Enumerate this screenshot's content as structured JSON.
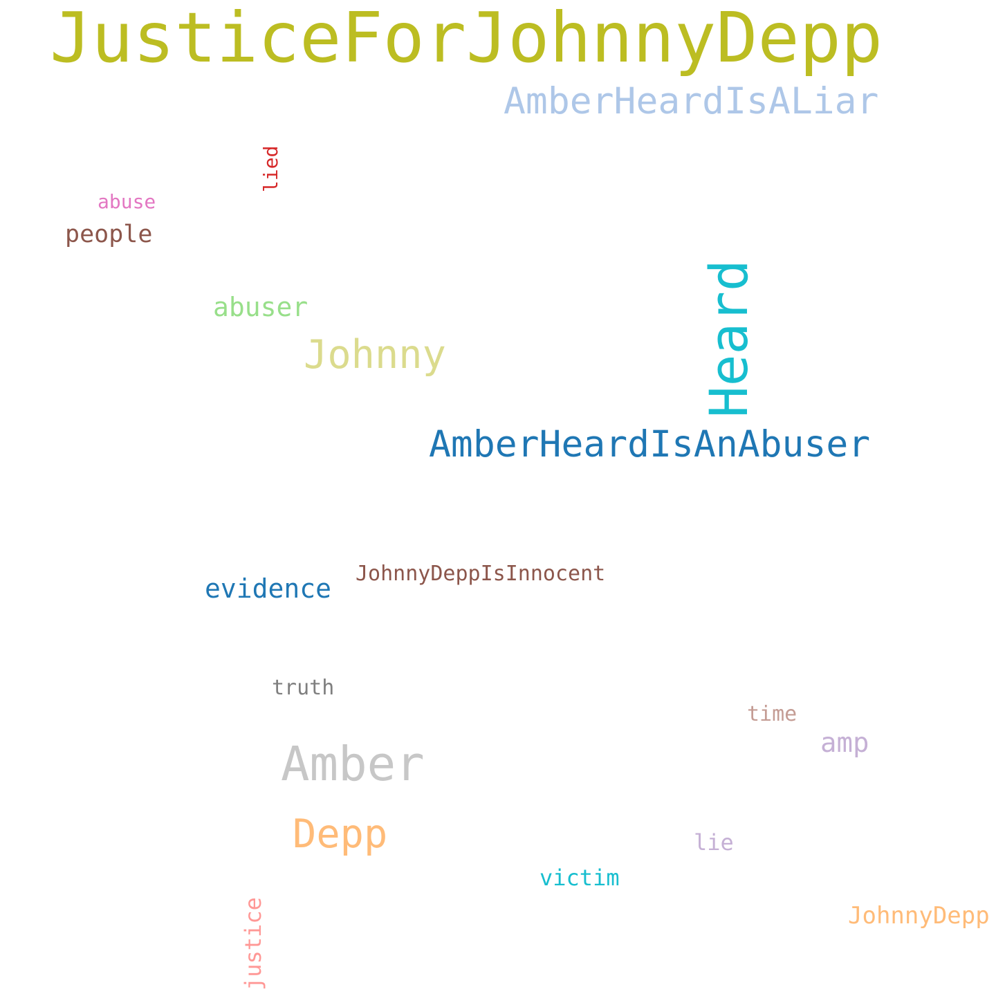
{
  "words": [
    {
      "text": "JusticeForJohnnyDepp",
      "color": "#bcbd22",
      "orientation": "horizontal"
    },
    {
      "text": "AmberHeardIsALiar",
      "color": "#aec7e8",
      "orientation": "horizontal"
    },
    {
      "text": "lied",
      "color": "#d62728",
      "orientation": "vertical"
    },
    {
      "text": "abuse",
      "color": "#e377c2",
      "orientation": "horizontal"
    },
    {
      "text": "people",
      "color": "#8c564b",
      "orientation": "horizontal"
    },
    {
      "text": "Heard",
      "color": "#17becf",
      "orientation": "vertical"
    },
    {
      "text": "abuser",
      "color": "#98df8a",
      "orientation": "horizontal"
    },
    {
      "text": "Johnny",
      "color": "#dbdb8d",
      "orientation": "horizontal"
    },
    {
      "text": "AmberHeardIsAnAbuser",
      "color": "#1f77b4",
      "orientation": "horizontal"
    },
    {
      "text": "evidence",
      "color": "#1f77b4",
      "orientation": "horizontal"
    },
    {
      "text": "JohnnyDeppIsInnocent",
      "color": "#8c564b",
      "orientation": "horizontal"
    },
    {
      "text": "truth",
      "color": "#7f7f7f",
      "orientation": "horizontal"
    },
    {
      "text": "time",
      "color": "#c49c94",
      "orientation": "horizontal"
    },
    {
      "text": "amp",
      "color": "#c5b0d5",
      "orientation": "horizontal"
    },
    {
      "text": "Amber",
      "color": "#c7c7c7",
      "orientation": "horizontal"
    },
    {
      "text": "Depp",
      "color": "#ffbb78",
      "orientation": "horizontal"
    },
    {
      "text": "lie",
      "color": "#c5b0d5",
      "orientation": "horizontal"
    },
    {
      "text": "victim",
      "color": "#17becf",
      "orientation": "horizontal"
    },
    {
      "text": "justice",
      "color": "#ff9896",
      "orientation": "vertical"
    },
    {
      "text": "JohnnyDepp",
      "color": "#ffbb78",
      "orientation": "horizontal"
    }
  ]
}
